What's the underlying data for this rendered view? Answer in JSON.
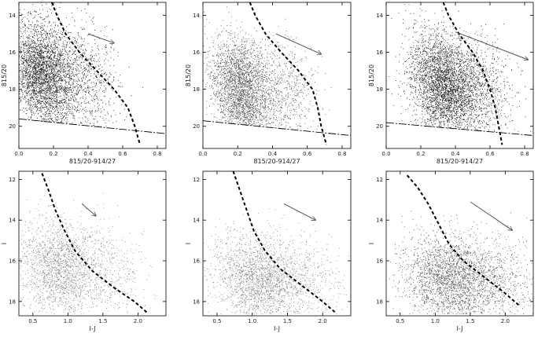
{
  "figure": {
    "panel_count": 6,
    "layout": "2 rows x 3 columns"
  },
  "chart_data": [
    {
      "type": "scatter",
      "panel": "top-left",
      "xlabel": "815/20-914/27",
      "ylabel": "815/20",
      "xlim": [
        0,
        0.85
      ],
      "ylim": [
        21.2,
        13.3
      ],
      "y_inverted": true,
      "xticks": [
        0.0,
        0.2,
        0.4,
        0.6,
        0.8
      ],
      "xtick_labels": [
        "0.0",
        "0.2",
        "0.4",
        "0.6",
        "0.8"
      ],
      "yticks": [
        14,
        16,
        18,
        20
      ],
      "ytick_labels": [
        "14",
        "16",
        "18",
        "20"
      ],
      "point_cloud": {
        "count": 4200,
        "center_x": 0.12,
        "center_y": 17.2,
        "spread_x": 0.08,
        "spread_y": 1.5,
        "tail_x": 0.35,
        "density": "high"
      },
      "dashed_curve": [
        [
          0.19,
          13.3
        ],
        [
          0.22,
          14.0
        ],
        [
          0.27,
          15.0
        ],
        [
          0.35,
          16.0
        ],
        [
          0.45,
          17.0
        ],
        [
          0.55,
          18.0
        ],
        [
          0.63,
          19.0
        ],
        [
          0.67,
          20.0
        ],
        [
          0.7,
          21.0
        ]
      ],
      "limit_line": [
        [
          0.0,
          19.6
        ],
        [
          0.85,
          20.4
        ]
      ],
      "vector": {
        "start": [
          0.4,
          15.0
        ],
        "end": [
          0.55,
          15.5
        ]
      }
    },
    {
      "type": "scatter",
      "panel": "top-middle",
      "xlabel": "815/20-914/27",
      "ylabel": "815/20",
      "xlim": [
        0,
        0.85
      ],
      "ylim": [
        21.2,
        13.3
      ],
      "y_inverted": true,
      "xticks": [
        0.0,
        0.2,
        0.4,
        0.6,
        0.8
      ],
      "xtick_labels": [
        "0.0",
        "0.2",
        "0.4",
        "0.6",
        "0.8"
      ],
      "yticks": [
        14,
        16,
        18,
        20
      ],
      "ytick_labels": [
        "14",
        "16",
        "18",
        "20"
      ],
      "point_cloud": {
        "count": 3600,
        "center_x": 0.2,
        "center_y": 18.0,
        "spread_x": 0.08,
        "spread_y": 1.4,
        "tail_x": 0.35,
        "density": "medium"
      },
      "dashed_curve": [
        [
          0.27,
          13.3
        ],
        [
          0.3,
          14.0
        ],
        [
          0.36,
          15.0
        ],
        [
          0.45,
          16.0
        ],
        [
          0.55,
          17.0
        ],
        [
          0.63,
          18.0
        ],
        [
          0.66,
          19.0
        ],
        [
          0.68,
          20.0
        ],
        [
          0.71,
          21.0
        ]
      ],
      "limit_line": [
        [
          0.0,
          19.7
        ],
        [
          0.85,
          20.5
        ]
      ],
      "vector": {
        "start": [
          0.42,
          15.0
        ],
        "end": [
          0.68,
          16.1
        ]
      }
    },
    {
      "type": "scatter",
      "panel": "top-right",
      "xlabel": "815/20-914/27",
      "ylabel": "815/20",
      "xlim": [
        0,
        0.85
      ],
      "ylim": [
        21.2,
        13.3
      ],
      "y_inverted": true,
      "xticks": [
        0.0,
        0.2,
        0.4,
        0.6,
        0.8
      ],
      "xtick_labels": [
        "0.0",
        "0.2",
        "0.4",
        "0.6",
        "0.8"
      ],
      "yticks": [
        14,
        16,
        18,
        20
      ],
      "ytick_labels": [
        "14",
        "16",
        "18",
        "20"
      ],
      "point_cloud": {
        "count": 4200,
        "center_x": 0.32,
        "center_y": 17.8,
        "spread_x": 0.09,
        "spread_y": 1.4,
        "tail_x": 0.3,
        "density": "high"
      },
      "dashed_curve": [
        [
          0.33,
          13.3
        ],
        [
          0.36,
          14.0
        ],
        [
          0.42,
          15.0
        ],
        [
          0.5,
          16.0
        ],
        [
          0.56,
          17.0
        ],
        [
          0.6,
          18.0
        ],
        [
          0.63,
          19.0
        ],
        [
          0.65,
          20.0
        ],
        [
          0.67,
          21.0
        ]
      ],
      "limit_line": [
        [
          0.0,
          19.8
        ],
        [
          0.85,
          20.5
        ]
      ],
      "vector": {
        "start": [
          0.4,
          14.9
        ],
        "end": [
          0.82,
          16.4
        ]
      }
    },
    {
      "type": "scatter",
      "panel": "bottom-left",
      "xlabel": "I-J",
      "ylabel": "I",
      "xlim": [
        0.3,
        2.4
      ],
      "ylim": [
        18.7,
        11.6
      ],
      "y_inverted": true,
      "xticks": [
        0.5,
        1.0,
        1.5,
        2.0
      ],
      "xtick_labels": [
        "0.5",
        "1.0",
        "1.5",
        "2.0"
      ],
      "yticks": [
        12,
        14,
        16,
        18
      ],
      "ytick_labels": [
        "12",
        "14",
        "16",
        "18"
      ],
      "point_cloud": {
        "count": 2400,
        "center_x": 0.85,
        "center_y": 16.4,
        "spread_x": 0.28,
        "spread_y": 1.2,
        "tail_x": 0.9,
        "density": "low"
      },
      "dashed_curve": [
        [
          0.63,
          11.7
        ],
        [
          0.72,
          12.5
        ],
        [
          0.82,
          13.5
        ],
        [
          0.95,
          14.5
        ],
        [
          1.1,
          15.5
        ],
        [
          1.35,
          16.5
        ],
        [
          1.65,
          17.3
        ],
        [
          1.95,
          18.0
        ],
        [
          2.15,
          18.6
        ]
      ],
      "vector": {
        "start": [
          1.2,
          13.2
        ],
        "end": [
          1.4,
          13.8
        ]
      }
    },
    {
      "type": "scatter",
      "panel": "bottom-middle",
      "xlabel": "I-J",
      "ylabel": "I",
      "xlim": [
        0.3,
        2.4
      ],
      "ylim": [
        18.7,
        11.6
      ],
      "y_inverted": true,
      "xticks": [
        0.5,
        1.0,
        1.5,
        2.0
      ],
      "xtick_labels": [
        "0.5",
        "1.0",
        "1.5",
        "2.0"
      ],
      "yticks": [
        12,
        14,
        16,
        18
      ],
      "ytick_labels": [
        "12",
        "14",
        "16",
        "18"
      ],
      "point_cloud": {
        "count": 2600,
        "center_x": 1.05,
        "center_y": 16.9,
        "spread_x": 0.3,
        "spread_y": 1.1,
        "tail_x": 0.9,
        "density": "low"
      },
      "dashed_curve": [
        [
          0.73,
          11.6
        ],
        [
          0.82,
          12.5
        ],
        [
          0.92,
          13.5
        ],
        [
          1.02,
          14.5
        ],
        [
          1.18,
          15.5
        ],
        [
          1.4,
          16.4
        ],
        [
          1.7,
          17.2
        ],
        [
          2.0,
          18.0
        ],
        [
          2.2,
          18.6
        ]
      ],
      "vector": {
        "start": [
          1.45,
          13.2
        ],
        "end": [
          1.9,
          14.0
        ]
      }
    },
    {
      "type": "scatter",
      "panel": "bottom-right",
      "xlabel": "I-J",
      "ylabel": "I",
      "xlim": [
        0.3,
        2.4
      ],
      "ylim": [
        18.7,
        11.6
      ],
      "y_inverted": true,
      "xticks": [
        0.5,
        1.0,
        1.5,
        2.0
      ],
      "xtick_labels": [
        "0.5",
        "1.0",
        "1.5",
        "2.0"
      ],
      "yticks": [
        12,
        14,
        16,
        18
      ],
      "ytick_labels": [
        "12",
        "14",
        "16",
        "18"
      ],
      "point_cloud": {
        "count": 3000,
        "center_x": 1.2,
        "center_y": 16.9,
        "spread_x": 0.32,
        "spread_y": 1.1,
        "tail_x": 0.9,
        "density": "medium"
      },
      "dashed_curve": [
        [
          0.6,
          11.8
        ],
        [
          0.75,
          12.4
        ],
        [
          0.9,
          13.2
        ],
        [
          1.05,
          14.2
        ],
        [
          1.2,
          15.2
        ],
        [
          1.4,
          16.0
        ],
        [
          1.7,
          16.8
        ],
        [
          2.0,
          17.6
        ],
        [
          2.2,
          18.2
        ]
      ],
      "vector": {
        "start": [
          1.5,
          13.1
        ],
        "end": [
          2.1,
          14.5
        ]
      }
    }
  ]
}
